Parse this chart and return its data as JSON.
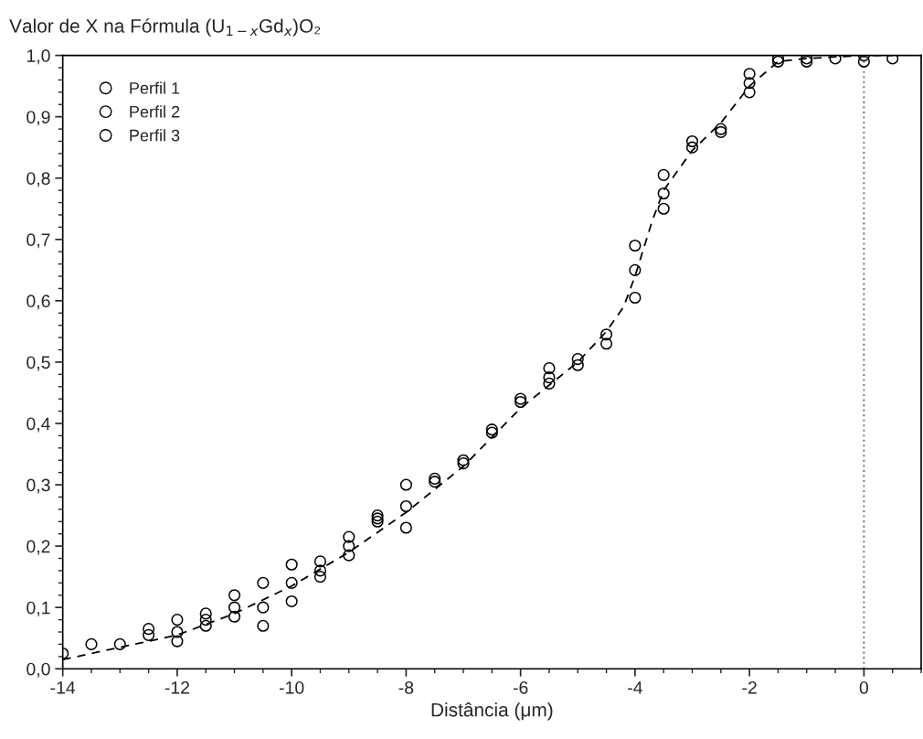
{
  "chart_data": {
    "type": "scatter",
    "title": "Valor de X na Fórmula (U$_{1−x}$Gd$_{x}$)O₂",
    "xlabel": "Distância (μm)",
    "xlim": [
      -14,
      1
    ],
    "xticks": [
      -14,
      -12,
      -10,
      -8,
      -6,
      -4,
      -2,
      {
        "value": 0,
        "label": "0"
      }
    ],
    "ylim": [
      0,
      1
    ],
    "yticks": [
      {
        "value": 0,
        "label": "0,0"
      },
      {
        "value": 0.1,
        "label": "0,1"
      },
      {
        "value": 0.2,
        "label": "0,2"
      },
      {
        "value": 0.3,
        "label": "0,3"
      },
      {
        "value": 0.4,
        "label": "0,4"
      },
      {
        "value": 0.5,
        "label": "0,5"
      },
      {
        "value": 0.6,
        "label": "0,6"
      },
      {
        "value": 0.7,
        "label": "0,7"
      },
      {
        "value": 0.8,
        "label": "0,8"
      },
      {
        "value": 0.9,
        "label": "0,9"
      },
      {
        "value": 1,
        "label": "1,0"
      }
    ],
    "marker": "circle",
    "legend": "top left",
    "grid": false,
    "series": [
      {
        "name": "Perfil 1",
        "color": "#000000",
        "x": [
          -14,
          -13.5,
          -13,
          -12.5,
          -12,
          -11.5,
          -11,
          -10.5,
          -10,
          -9.5,
          -9,
          -8.5,
          -8,
          -7.5,
          -7,
          -6.5,
          -6,
          -5.5,
          -5,
          -4.5,
          -4,
          -3.5,
          -3,
          -2.5,
          -2,
          -1.5,
          -1,
          -0.5,
          0,
          0.5
        ],
        "values": [
          0.025,
          0.04,
          0.04,
          0.065,
          0.08,
          0.09,
          0.12,
          0.14,
          0.17,
          0.175,
          0.215,
          0.25,
          0.3,
          0.31,
          0.34,
          0.39,
          0.44,
          0.49,
          0.505,
          0.545,
          0.69,
          0.805,
          0.86,
          0.88,
          0.97,
          0.995,
          0.995,
          0.995,
          1.0,
          0.995
        ]
      },
      {
        "name": "Perfil 2",
        "color": "#000000",
        "x": [
          -12.5,
          -12,
          -11.5,
          -11,
          -10.5,
          -10,
          -9.5,
          -9,
          -8.5,
          -8,
          -7.5,
          -7,
          -6.5,
          -6,
          -5.5,
          -5,
          -4.5,
          -4,
          -3.5,
          -3,
          -2.5,
          -2,
          -1.5,
          -1,
          0
        ],
        "values": [
          0.055,
          0.06,
          0.08,
          0.1,
          0.1,
          0.14,
          0.16,
          0.2,
          0.245,
          0.265,
          0.305,
          0.335,
          0.385,
          0.435,
          0.475,
          0.495,
          0.53,
          0.65,
          0.775,
          0.85,
          0.875,
          0.955,
          0.99,
          0.99,
          0.99
        ]
      },
      {
        "name": "Perfil 3",
        "color": "#000000",
        "x": [
          -12,
          -11.5,
          -11,
          -10.5,
          -10,
          -9.5,
          -9,
          -8.5,
          -8,
          -5.5,
          -4,
          -3.5,
          -2
        ],
        "values": [
          0.045,
          0.07,
          0.085,
          0.07,
          0.11,
          0.15,
          0.185,
          0.24,
          0.23,
          0.465,
          0.605,
          0.75,
          0.94
        ]
      },
      {
        "type": "line",
        "line_style": "dashed",
        "marker": "none",
        "color": "#000000",
        "x": [
          -14,
          -13,
          -12,
          -11,
          -10,
          -9,
          -8,
          -7,
          -6,
          -5,
          -4.5,
          -4.2,
          -4,
          -3.7,
          -3.5,
          -3,
          -2.5,
          -2,
          -1.5,
          -1,
          0,
          0.5
        ],
        "values": [
          0.015,
          0.035,
          0.055,
          0.09,
          0.135,
          0.19,
          0.255,
          0.33,
          0.425,
          0.5,
          0.55,
          0.59,
          0.64,
          0.73,
          0.78,
          0.845,
          0.89,
          0.95,
          0.99,
          0.995,
          1.0,
          1.0
        ]
      }
    ],
    "ref_lines": [
      {
        "axis": "x",
        "value": 0,
        "line_style": "dotted",
        "color": "#808080"
      }
    ]
  }
}
